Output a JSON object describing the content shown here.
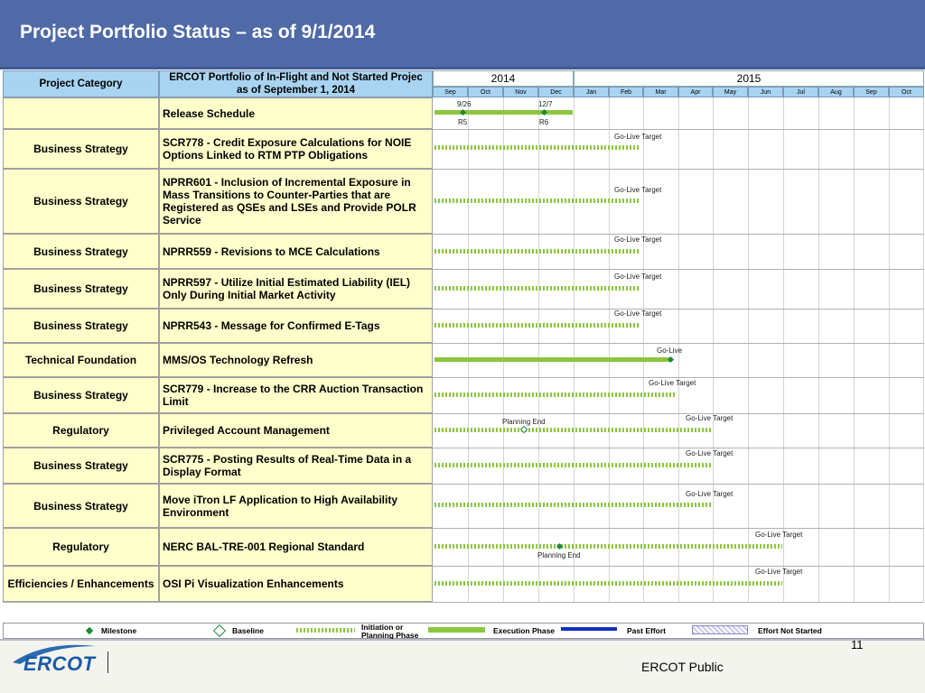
{
  "slide": {
    "title": "Project Portfolio Status – as of 9/1/2014",
    "page_number": "11",
    "footer_label": "ERCOT Public",
    "logo_text": "ERCOT"
  },
  "table": {
    "header_category": "Project Category",
    "header_name": "ERCOT Portfolio of In-Flight and Not Started Projec as of September 1, 2014",
    "years": [
      "2014",
      "2015"
    ],
    "months": [
      "Sep",
      "Oct",
      "Nov",
      "Dec",
      "Jan",
      "Feb",
      "Mar",
      "Apr",
      "May",
      "Jun",
      "Jul",
      "Aug",
      "Sep",
      "Oct"
    ]
  },
  "rows": [
    {
      "category": "",
      "name": "Release Schedule"
    },
    {
      "category": "Business Strategy",
      "name": "SCR778 - Credit Exposure Calculations for NOIE Options Linked to RTM PTP Obligations"
    },
    {
      "category": "Business Strategy",
      "name": "NPRR601 - Inclusion of Incremental Exposure in Mass Transitions to Counter-Parties that are Registered as QSEs and LSEs and Provide POLR Service"
    },
    {
      "category": "Business Strategy",
      "name": "NPRR559 - Revisions to MCE Calculations"
    },
    {
      "category": "Business Strategy",
      "name": "NPRR597 - Utilize Initial Estimated Liability (IEL) Only During Initial Market Activity"
    },
    {
      "category": "Business Strategy",
      "name": "NPRR543 - Message for Confirmed E-Tags"
    },
    {
      "category": "Technical Foundation",
      "name": "MMS/OS Technology Refresh"
    },
    {
      "category": "Business Strategy",
      "name": "SCR779 - Increase to the CRR Auction Transaction Limit"
    },
    {
      "category": "Regulatory",
      "name": "Privileged Account Management"
    },
    {
      "category": "Business Strategy",
      "name": "SCR775 - Posting Results of Real-Time Data in a Display Format"
    },
    {
      "category": "Business Strategy",
      "name": "Move iTron LF Application to High Availability Environment"
    },
    {
      "category": "Regulatory",
      "name": "NERC BAL-TRE-001 Regional Standard"
    },
    {
      "category": "Efficiencies / Enhancements",
      "name": "OSI Pi Visualization Enhancements"
    }
  ],
  "gantt_labels": {
    "release_date_1": "9/26",
    "release_date_2": "12/7",
    "release_1": "R5",
    "release_2": "R6",
    "go_live_target": "Go-Live Target",
    "go_live": "Go-Live",
    "planning_end": "Planning End"
  },
  "legend": {
    "milestone": "Milestone",
    "baseline": "Baseline",
    "initiation": "Initiation or Planning Phase",
    "execution": "Execution Phase",
    "past_effort": "Past Effort",
    "not_started": "Effort Not Started"
  },
  "colors": {
    "title_bar": "#4f6aa6",
    "phase_green": "#8cc63f",
    "milestone_green": "#1e8a3a",
    "past_effort_blue": "#1030c0",
    "header_blue": "#a8d4f2",
    "row_yellow": "#ffffcc"
  }
}
